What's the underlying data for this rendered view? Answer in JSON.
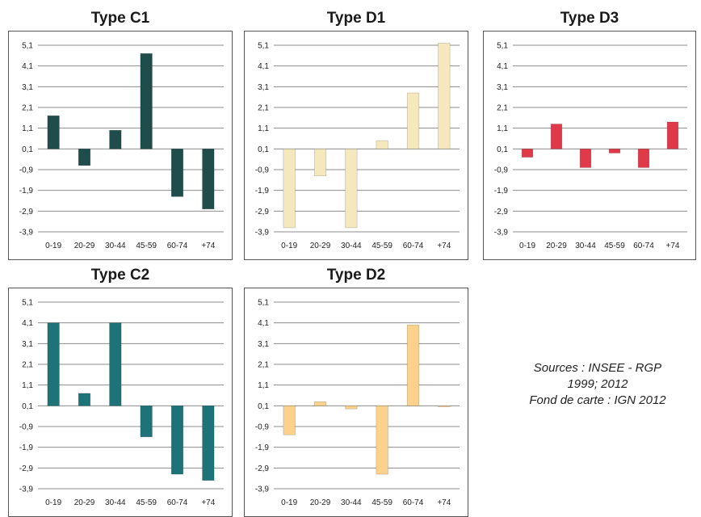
{
  "chart_data": [
    {
      "type": "bar",
      "title": "Type C1",
      "categories": [
        "0-19",
        "20-29",
        "30-44",
        "45-59",
        "60-74",
        "+74"
      ],
      "values": [
        1.7,
        -0.7,
        1.0,
        4.7,
        -2.2,
        -2.8
      ],
      "color": "#1e4d4b",
      "yticks": [
        "5,1",
        "4,1",
        "3,1",
        "2,1",
        "1,1",
        "0,1",
        "-0,9",
        "-1,9",
        "-2,9",
        "-3,9"
      ],
      "ylim": [
        -3.9,
        5.1
      ],
      "baseline": 0.1,
      "grid": true,
      "xlabel": "",
      "ylabel": ""
    },
    {
      "type": "bar",
      "title": "Type D1",
      "categories": [
        "0-19",
        "20-29",
        "30-44",
        "45-59",
        "60-74",
        "+74"
      ],
      "values": [
        -3.7,
        -1.2,
        -3.7,
        0.5,
        2.8,
        5.2
      ],
      "color": "#f5e8bd",
      "yticks": [
        "5,1",
        "4,1",
        "3,1",
        "2,1",
        "1,1",
        "0,1",
        "-0,9",
        "-1,9",
        "-2,9",
        "-3,9"
      ],
      "ylim": [
        -3.9,
        5.1
      ],
      "baseline": 0.1,
      "grid": true,
      "xlabel": "",
      "ylabel": ""
    },
    {
      "type": "bar",
      "title": "Type D3",
      "categories": [
        "0-19",
        "20-29",
        "30-44",
        "45-59",
        "60-74",
        "+74"
      ],
      "values": [
        -0.3,
        1.3,
        -0.8,
        -0.1,
        -0.8,
        1.4
      ],
      "color": "#e03a4a",
      "yticks": [
        "5,1",
        "4,1",
        "3,1",
        "2,1",
        "1,1",
        "0,1",
        "-0,9",
        "-1,9",
        "-2,9",
        "-3,9"
      ],
      "ylim": [
        -3.9,
        5.1
      ],
      "baseline": 0.1,
      "grid": true,
      "xlabel": "",
      "ylabel": ""
    },
    {
      "type": "bar",
      "title": "Type C2",
      "categories": [
        "0-19",
        "20-29",
        "30-44",
        "45-59",
        "60-74",
        "+74"
      ],
      "values": [
        4.1,
        0.7,
        4.1,
        -1.4,
        -3.2,
        -3.5
      ],
      "color": "#1e7378",
      "yticks": [
        "5,1",
        "4,1",
        "3,1",
        "2,1",
        "1,1",
        "0,1",
        "-0,9",
        "-1,9",
        "-2,9",
        "-3,9"
      ],
      "ylim": [
        -3.9,
        5.1
      ],
      "baseline": 0.1,
      "grid": true,
      "xlabel": "",
      "ylabel": ""
    },
    {
      "type": "bar",
      "title": "Type D2",
      "categories": [
        "0-19",
        "20-29",
        "30-44",
        "45-59",
        "60-74",
        "+74"
      ],
      "values": [
        -1.3,
        0.3,
        -0.05,
        -3.2,
        4.0,
        0.05
      ],
      "color": "#fcd18c",
      "yticks": [
        "5,1",
        "4,1",
        "3,1",
        "2,1",
        "1,1",
        "0,1",
        "-0,9",
        "-1,9",
        "-2,9",
        "-3,9"
      ],
      "ylim": [
        -3.9,
        5.1
      ],
      "baseline": 0.1,
      "grid": true,
      "xlabel": "",
      "ylabel": ""
    }
  ],
  "sources": {
    "line1": "Sources : INSEE - RGP",
    "line2": "1999; 2012",
    "line3": "Fond de carte : IGN 2012"
  }
}
